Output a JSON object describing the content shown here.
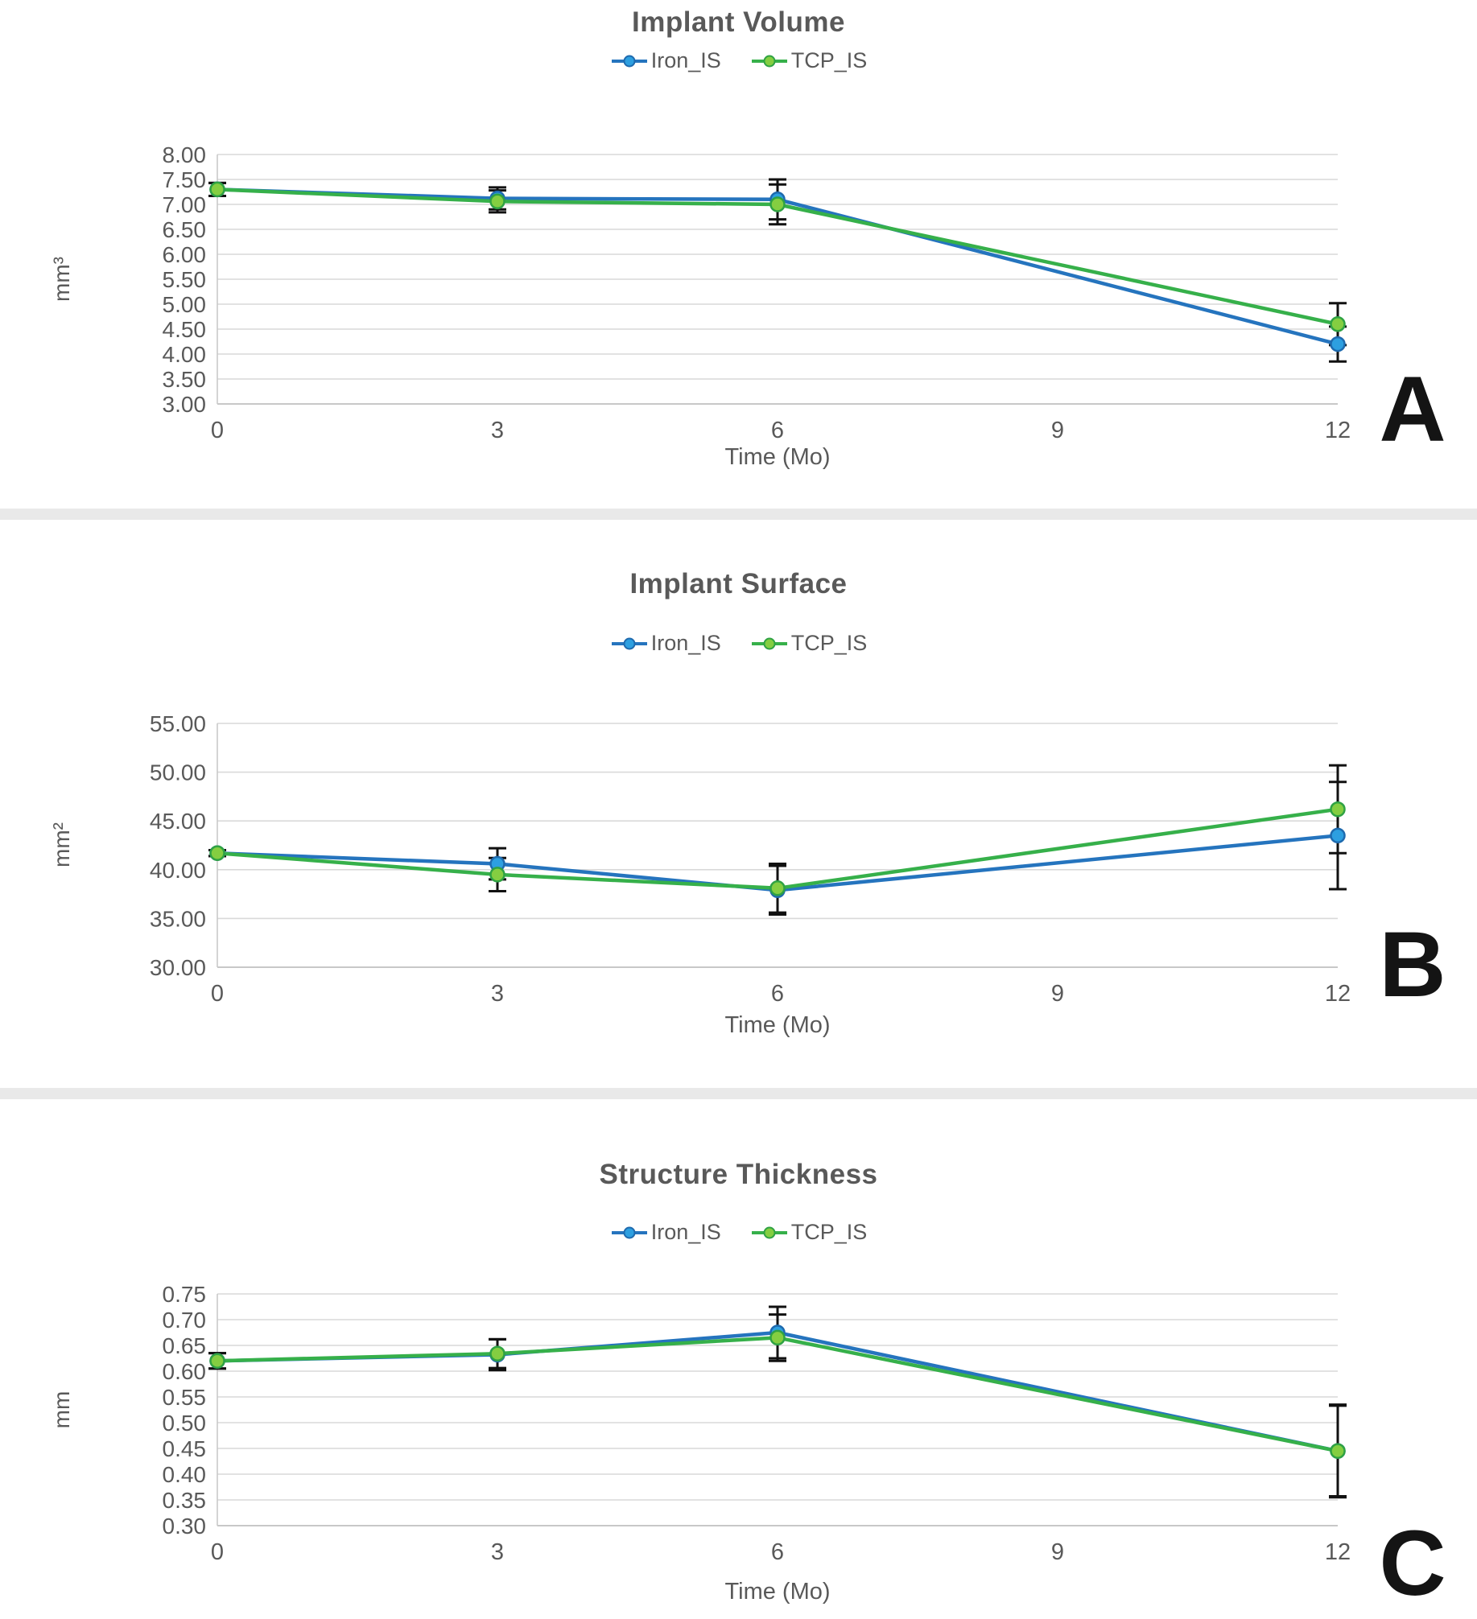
{
  "figure": {
    "background": "#ffffff",
    "divider_color": "#e9e9e9",
    "title_color": "#595959",
    "tick_color": "#595959",
    "gridline_color": "#d9d9d9",
    "axis_line_color": "#b5b5b5",
    "error_bar_color": "#111111"
  },
  "chart_data": [
    {
      "type": "line",
      "panel_letter": "A",
      "title": "Implant Volume",
      "ylabel": "mm³",
      "xlabel": "Time (Mo)",
      "legend_position": "top",
      "grid": true,
      "x": [
        0,
        3,
        6,
        12
      ],
      "xticks": [
        0,
        3,
        6,
        9,
        12
      ],
      "xlim": [
        0,
        12
      ],
      "ylim": [
        3.0,
        8.0
      ],
      "ystep": 0.5,
      "yticks": [
        "8.00",
        "7.50",
        "7.00",
        "6.50",
        "6.00",
        "5.50",
        "5.00",
        "4.50",
        "4.00",
        "3.50",
        "3.00"
      ],
      "series": [
        {
          "name": "Iron_IS",
          "line": "#2574be",
          "marker_fill": "#2d9fe0",
          "marker_stroke": "#1e6aae",
          "values": [
            7.3,
            7.12,
            7.1,
            4.2
          ],
          "err": [
            0.13,
            0.22,
            0.4,
            0.35
          ]
        },
        {
          "name": "TCP_IS",
          "line": "#36b04a",
          "marker_fill": "#84ce41",
          "marker_stroke": "#2fa243",
          "values": [
            7.3,
            7.06,
            7.0,
            4.6
          ],
          "err": [
            0.13,
            0.22,
            0.4,
            0.42
          ]
        }
      ]
    },
    {
      "type": "line",
      "panel_letter": "B",
      "title": "Implant Surface",
      "ylabel": "mm²",
      "xlabel": "Time (Mo)",
      "legend_position": "top",
      "grid": true,
      "x": [
        0,
        3,
        6,
        12
      ],
      "xticks": [
        0,
        3,
        6,
        9,
        12
      ],
      "xlim": [
        0,
        12
      ],
      "ylim": [
        30.0,
        55.0
      ],
      "ystep": 5.0,
      "yticks": [
        "55.00",
        "50.00",
        "45.00",
        "40.00",
        "35.00",
        "30.00"
      ],
      "series": [
        {
          "name": "Iron_IS",
          "line": "#2574be",
          "marker_fill": "#2d9fe0",
          "marker_stroke": "#1e6aae",
          "values": [
            41.7,
            40.6,
            37.9,
            43.5
          ],
          "err": [
            0.3,
            1.6,
            2.5,
            5.5
          ]
        },
        {
          "name": "TCP_IS",
          "line": "#36b04a",
          "marker_fill": "#84ce41",
          "marker_stroke": "#2fa243",
          "values": [
            41.7,
            39.5,
            38.1,
            46.2
          ],
          "err": [
            0.3,
            1.7,
            2.5,
            4.5
          ]
        }
      ]
    },
    {
      "type": "line",
      "panel_letter": "C",
      "title": "Structure Thickness",
      "ylabel": "mm",
      "xlabel": "Time (Mo)",
      "legend_position": "top",
      "grid": true,
      "x": [
        0,
        3,
        6,
        12
      ],
      "xticks": [
        0,
        3,
        6,
        9,
        12
      ],
      "xlim": [
        0,
        12
      ],
      "ylim": [
        0.3,
        0.75
      ],
      "ystep": 0.05,
      "yticks": [
        "0.75",
        "0.70",
        "0.65",
        "0.60",
        "0.55",
        "0.50",
        "0.45",
        "0.40",
        "0.35",
        "0.30"
      ],
      "series": [
        {
          "name": "Iron_IS",
          "line": "#2574be",
          "marker_fill": "#2d9fe0",
          "marker_stroke": "#1e6aae",
          "values": [
            0.62,
            0.632,
            0.675,
            0.445
          ],
          "err": [
            0.015,
            0.03,
            0.05,
            0.09
          ]
        },
        {
          "name": "TCP_IS",
          "line": "#36b04a",
          "marker_fill": "#84ce41",
          "marker_stroke": "#2fa243",
          "values": [
            0.62,
            0.634,
            0.665,
            0.445
          ],
          "err": [
            0.015,
            0.028,
            0.045,
            0.088
          ]
        }
      ]
    }
  ]
}
